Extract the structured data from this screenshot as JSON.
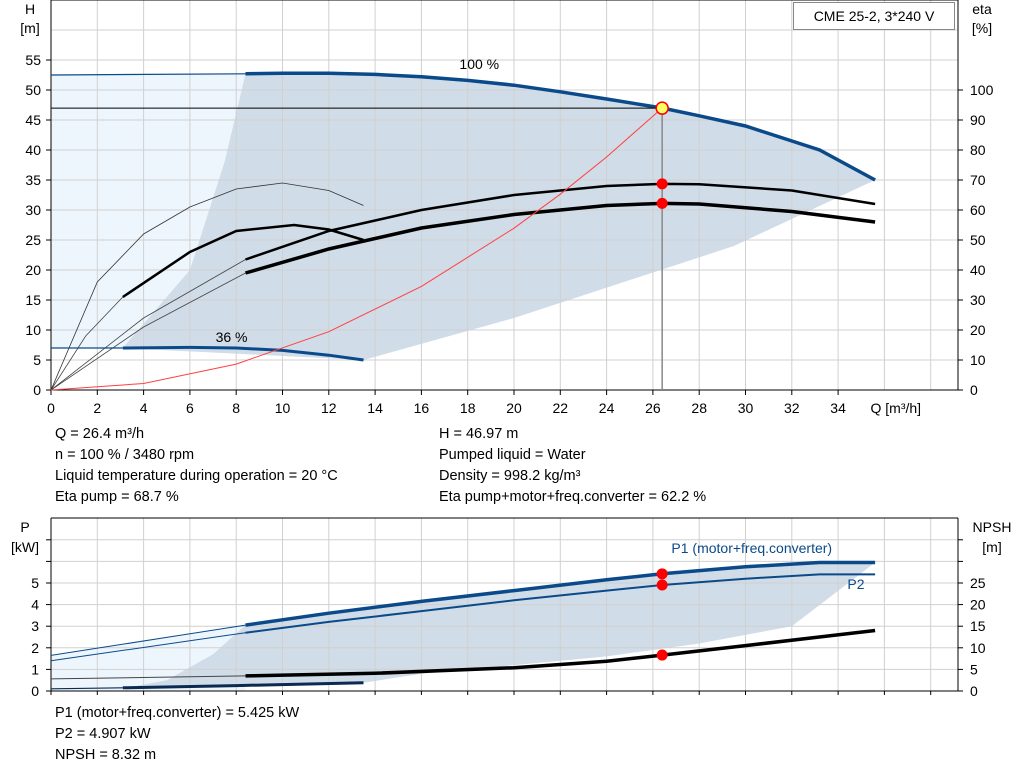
{
  "legend_box": "CME 25-2, 3*240 V",
  "chart_data": [
    {
      "type": "line",
      "name": "head-efficiency",
      "xlabel": "Q [m³/h]",
      "ylabel_left": [
        "H",
        "[m]"
      ],
      "ylabel_right": [
        "eta",
        "[%]"
      ],
      "xlim": [
        0,
        38
      ],
      "ylim_left": [
        0,
        65
      ],
      "ylim_right": [
        0,
        130
      ],
      "x_ticks": [
        0,
        2,
        4,
        6,
        8,
        10,
        12,
        14,
        16,
        18,
        20,
        22,
        24,
        26,
        28,
        30,
        32,
        34
      ],
      "y_ticks_left": [
        0,
        5,
        10,
        15,
        20,
        25,
        30,
        35,
        40,
        45,
        50,
        55
      ],
      "y_ticks_right": [
        0,
        10,
        20,
        30,
        40,
        50,
        60,
        70,
        80,
        90,
        100
      ],
      "grid": true,
      "annotations": [
        {
          "text": "100 %"
        },
        {
          "text": "36 %"
        }
      ],
      "colors": {
        "curve": "#0b4a8a",
        "shade": "#d0dce7",
        "shade_light": "#eef6fd",
        "system": "#ff4040",
        "point": "#ff0000",
        "op_point_fill": "#ffff66"
      },
      "series": {
        "h_100": [
          [
            0,
            52.5
          ],
          [
            8.4,
            52.7
          ],
          [
            10,
            52.8
          ],
          [
            12,
            52.8
          ],
          [
            14,
            52.6
          ],
          [
            16,
            52.2
          ],
          [
            18,
            51.6
          ],
          [
            20,
            50.8
          ],
          [
            22,
            49.7
          ],
          [
            24,
            48.5
          ],
          [
            26.4,
            47
          ],
          [
            28,
            45.7
          ],
          [
            30,
            44
          ],
          [
            33.2,
            40
          ],
          [
            35.6,
            35
          ]
        ],
        "h_36": [
          [
            0,
            7
          ],
          [
            3.1,
            7
          ],
          [
            6,
            7.1
          ],
          [
            8,
            7
          ],
          [
            10,
            6.6
          ],
          [
            12,
            5.8
          ],
          [
            13.5,
            5
          ]
        ],
        "eta_pump_100": [
          [
            0,
            0
          ],
          [
            4,
            24
          ],
          [
            8.4,
            43.5
          ],
          [
            12,
            53
          ],
          [
            16,
            60
          ],
          [
            20,
            65
          ],
          [
            24,
            68
          ],
          [
            26.4,
            68.7
          ],
          [
            28,
            68.6
          ],
          [
            32,
            66.5
          ],
          [
            35.6,
            62
          ]
        ],
        "eta_total_100": [
          [
            0,
            0
          ],
          [
            4,
            21
          ],
          [
            8.4,
            39
          ],
          [
            12,
            47
          ],
          [
            16,
            54
          ],
          [
            20,
            58.5
          ],
          [
            24,
            61.5
          ],
          [
            26.4,
            62.2
          ],
          [
            28,
            62
          ],
          [
            32,
            59.5
          ],
          [
            35.6,
            56
          ]
        ],
        "eta_pump_36": [
          [
            0,
            0
          ],
          [
            2,
            36
          ],
          [
            4,
            52
          ],
          [
            6,
            61
          ],
          [
            8,
            67
          ],
          [
            10,
            69
          ],
          [
            12,
            66.5
          ],
          [
            13.5,
            61.5
          ]
        ],
        "eta_total_36": [
          [
            0,
            0
          ],
          [
            1.5,
            18
          ],
          [
            3.1,
            31
          ],
          [
            6,
            46
          ],
          [
            8,
            53
          ],
          [
            10.5,
            55
          ],
          [
            12,
            53.5
          ],
          [
            13.5,
            50
          ]
        ],
        "system_curve": [
          [
            0,
            0
          ],
          [
            4,
            1.08
          ],
          [
            8,
            4.32
          ],
          [
            12,
            9.71
          ],
          [
            16,
            17.26
          ],
          [
            20,
            26.97
          ],
          [
            22,
            32.64
          ],
          [
            24,
            38.84
          ],
          [
            26.4,
            47
          ]
        ],
        "operating_point": {
          "Q": 26.4,
          "H": 46.97,
          "eta_pump": 68.7,
          "eta_total": 62.2
        }
      }
    },
    {
      "type": "line",
      "name": "power-npsh",
      "xlim": [
        0,
        38
      ],
      "ylabel_left": [
        "P",
        "[kW]"
      ],
      "ylabel_right": [
        "NPSH",
        "[m]"
      ],
      "ylim_left": [
        0,
        8
      ],
      "ylim_right": [
        0,
        40
      ],
      "y_ticks_left": [
        0,
        1,
        2,
        3,
        4,
        5
      ],
      "y_ticks_right": [
        0,
        5,
        10,
        15,
        20,
        25
      ],
      "grid": true,
      "series_labels": [
        "P1 (motor+freq.converter)",
        "P2"
      ],
      "series": {
        "p1_100": [
          [
            0,
            1.65
          ],
          [
            8.4,
            3.05
          ],
          [
            12,
            3.6
          ],
          [
            16,
            4.15
          ],
          [
            20,
            4.65
          ],
          [
            24,
            5.15
          ],
          [
            26.4,
            5.425
          ],
          [
            30,
            5.75
          ],
          [
            33.2,
            5.95
          ],
          [
            35.6,
            5.95
          ]
        ],
        "p2_100": [
          [
            0,
            1.4
          ],
          [
            8.4,
            2.7
          ],
          [
            12,
            3.2
          ],
          [
            16,
            3.7
          ],
          [
            20,
            4.2
          ],
          [
            24,
            4.65
          ],
          [
            26.4,
            4.907
          ],
          [
            30,
            5.2
          ],
          [
            33.2,
            5.4
          ],
          [
            35.6,
            5.4
          ]
        ],
        "npsh": [
          [
            0,
            2.8
          ],
          [
            8.4,
            3.5
          ],
          [
            14,
            4.1
          ],
          [
            20,
            5.4
          ],
          [
            24,
            6.9
          ],
          [
            26.4,
            8.32
          ],
          [
            30,
            10.5
          ],
          [
            35.6,
            14
          ]
        ],
        "p_36": [
          [
            0,
            0.1
          ],
          [
            3.1,
            0.15
          ],
          [
            8,
            0.25
          ],
          [
            13.5,
            0.38
          ]
        ],
        "operating_point": {
          "Q": 26.4,
          "P1": 5.425,
          "P2": 4.907,
          "NPSH": 8.32
        }
      }
    }
  ],
  "info_top": {
    "left": [
      "Q = 26.4 m³/h",
      "n = 100 % / 3480 rpm",
      "Liquid temperature during operation = 20 °C",
      "Eta pump = 68.7 %"
    ],
    "right": [
      "H = 46.97 m",
      "Pumped liquid = Water",
      "Density = 998.2 kg/m³",
      "Eta pump+motor+freq.converter = 62.2 %"
    ]
  },
  "info_bottom": [
    "P1 (motor+freq.converter) = 5.425 kW",
    "P2 = 4.907 kW",
    "NPSH = 8.32 m"
  ]
}
